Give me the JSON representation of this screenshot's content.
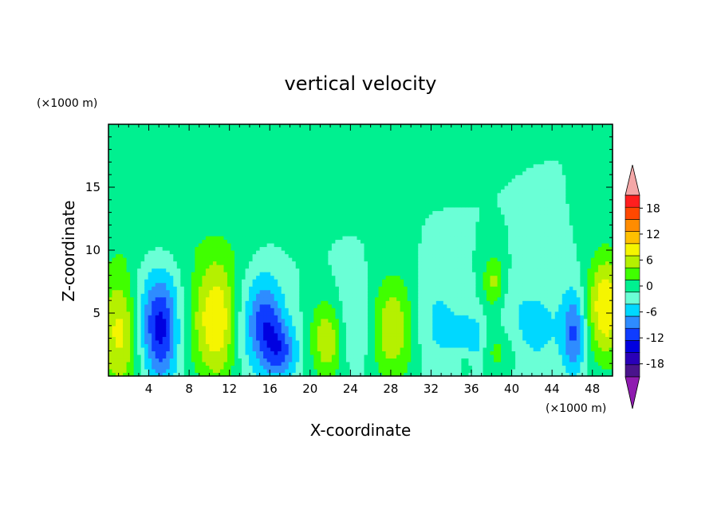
{
  "chart_data": {
    "type": "heatmap",
    "title": "vertical velocity",
    "xlabel": "X-coordinate",
    "ylabel": "Z-coordinate",
    "x_unit": "(×1000 m)",
    "y_unit": "(×1000 m)",
    "xlim": [
      0,
      50
    ],
    "ylim": [
      0,
      20
    ],
    "x_ticks": [
      4,
      8,
      12,
      16,
      20,
      24,
      28,
      32,
      36,
      40,
      44,
      48
    ],
    "y_ticks": [
      5,
      10,
      15
    ],
    "background_level": 0,
    "colorbar": {
      "levels": [
        -21,
        -18,
        -15,
        -12,
        -9,
        -6,
        -3,
        0,
        3,
        6,
        9,
        12,
        15,
        18,
        21
      ],
      "labels": [
        "18",
        "12",
        "6",
        "0",
        "-6",
        "-12",
        "-18"
      ],
      "label_values": [
        18,
        12,
        6,
        0,
        -6,
        -12,
        -18
      ],
      "colors": [
        "#4a148c",
        "#2a00b8",
        "#0000e0",
        "#0f3cff",
        "#2e8cff",
        "#00d8ff",
        "#6affd6",
        "#00f090",
        "#40ff00",
        "#b5f000",
        "#f5f500",
        "#ffc000",
        "#ff8c00",
        "#ff4800",
        "#ff1f1f"
      ],
      "under_color": "#8f1bb0",
      "over_color": "#f4a7a7"
    },
    "features": [
      {
        "x": 1.2,
        "z": 3.5,
        "value": 10,
        "sx": 1.6,
        "sz": 3.6
      },
      {
        "x": 5.2,
        "z": 3.8,
        "value": -13,
        "sx": 1.2,
        "sz": 3.0
      },
      {
        "x": 10.8,
        "z": 4.5,
        "value": 12,
        "sx": 1.8,
        "sz": 3.6
      },
      {
        "x": 15.5,
        "z": 4.2,
        "value": -11,
        "sx": 1.3,
        "sz": 2.6
      },
      {
        "x": 17.2,
        "z": 2.0,
        "value": -8,
        "sx": 1.2,
        "sz": 1.6
      },
      {
        "x": 21.8,
        "z": 3.0,
        "value": 10,
        "sx": 1.3,
        "sz": 2.4
      },
      {
        "x": 24.5,
        "z": 4.0,
        "value": -5,
        "sx": 2.2,
        "sz": 2.8
      },
      {
        "x": 28.0,
        "z": 3.8,
        "value": 10,
        "sx": 1.8,
        "sz": 3.0
      },
      {
        "x": 32.5,
        "z": 4.2,
        "value": -4,
        "sx": 2.0,
        "sz": 2.8
      },
      {
        "x": 36.0,
        "z": 2.5,
        "value": -7,
        "sx": 1.0,
        "sz": 1.4
      },
      {
        "x": 38.2,
        "z": 7.5,
        "value": 7,
        "sx": 0.8,
        "sz": 1.6
      },
      {
        "x": 38.5,
        "z": 2.0,
        "value": 5,
        "sx": 1.4,
        "sz": 1.4
      },
      {
        "x": 35.5,
        "z": 1.5,
        "value": 5,
        "sx": 0.7,
        "sz": 1.0
      },
      {
        "x": 42.0,
        "z": 4.0,
        "value": -4,
        "sx": 2.5,
        "sz": 2.8
      },
      {
        "x": 46.2,
        "z": 3.5,
        "value": -9,
        "sx": 0.8,
        "sz": 2.4
      },
      {
        "x": 49.3,
        "z": 5.5,
        "value": 12,
        "sx": 1.3,
        "sz": 3.0
      },
      {
        "x": 13.0,
        "z": 4.0,
        "value": -4,
        "sx": 1.0,
        "sz": 3.0
      },
      {
        "x": 3.2,
        "z": 4.5,
        "value": -4,
        "sx": 1.0,
        "sz": 3.0
      },
      {
        "x": 8.0,
        "z": 15.0,
        "value": 1.5,
        "sx": 8.0,
        "sz": 3.0
      },
      {
        "x": 22.0,
        "z": 16.5,
        "value": 1.5,
        "sx": 4.0,
        "sz": 2.0
      },
      {
        "x": 6.0,
        "z": 10.0,
        "value": 1.0,
        "sx": 6.0,
        "sz": 1.0
      }
    ]
  }
}
